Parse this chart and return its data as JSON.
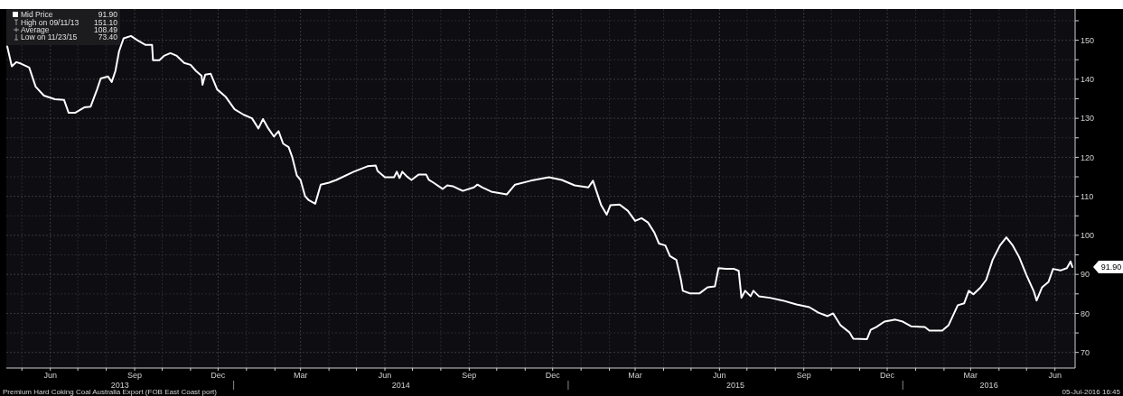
{
  "chart_data": {
    "type": "line",
    "legend": "top left",
    "grid": true,
    "line_style": "solid",
    "ylim": [
      66,
      158
    ],
    "yticks": [
      70,
      {
        "value": 75,
        "label": null
      },
      80,
      {
        "value": 85,
        "label": null
      },
      90,
      {
        "value": 95,
        "label": null
      },
      100,
      {
        "value": 105,
        "label": null
      },
      110,
      {
        "value": 115,
        "label": null
      },
      120,
      {
        "value": 125,
        "label": null
      },
      130,
      {
        "value": 135,
        "label": null
      },
      140,
      {
        "value": 145,
        "label": null
      },
      150,
      {
        "value": 155,
        "label": null
      }
    ],
    "xlim": [
      "2013-04-28",
      "2016-07-07"
    ],
    "xticks": [
      {
        "value": "2013-05-15",
        "label": null
      },
      {
        "value": "2013-06-15",
        "label": "Jun"
      },
      {
        "value": "2013-07-15",
        "label": null
      },
      {
        "value": "2013-08-15",
        "label": null
      },
      {
        "value": "2013-09-15",
        "label": "Sep"
      },
      {
        "value": "2013-10-15",
        "label": null
      },
      {
        "value": "2013-11-15",
        "label": null
      },
      {
        "value": "2013-12-15",
        "label": "Dec"
      },
      {
        "value": "2014-01-15",
        "label": null
      },
      {
        "value": "2014-02-15",
        "label": null
      },
      {
        "value": "2014-03-15",
        "label": "Mar"
      },
      {
        "value": "2014-04-15",
        "label": null
      },
      {
        "value": "2014-05-15",
        "label": null
      },
      {
        "value": "2014-06-15",
        "label": "Jun"
      },
      {
        "value": "2014-07-15",
        "label": null
      },
      {
        "value": "2014-08-15",
        "label": null
      },
      {
        "value": "2014-09-15",
        "label": "Sep"
      },
      {
        "value": "2014-10-15",
        "label": null
      },
      {
        "value": "2014-11-15",
        "label": null
      },
      {
        "value": "2014-12-15",
        "label": "Dec"
      },
      {
        "value": "2015-01-15",
        "label": null
      },
      {
        "value": "2015-02-15",
        "label": null
      },
      {
        "value": "2015-03-15",
        "label": "Mar"
      },
      {
        "value": "2015-04-15",
        "label": null
      },
      {
        "value": "2015-05-15",
        "label": null
      },
      {
        "value": "2015-06-15",
        "label": "Jun"
      },
      {
        "value": "2015-07-15",
        "label": null
      },
      {
        "value": "2015-08-15",
        "label": null
      },
      {
        "value": "2015-09-15",
        "label": "Sep"
      },
      {
        "value": "2015-10-15",
        "label": null
      },
      {
        "value": "2015-11-15",
        "label": null
      },
      {
        "value": "2015-12-15",
        "label": "Dec"
      },
      {
        "value": "2016-01-15",
        "label": null
      },
      {
        "value": "2016-02-15",
        "label": null
      },
      {
        "value": "2016-03-15",
        "label": "Mar"
      },
      {
        "value": "2016-04-15",
        "label": null
      },
      {
        "value": "2016-05-15",
        "label": null
      },
      {
        "value": "2016-06-15",
        "label": "Jun"
      }
    ],
    "annotations": [
      "91.90",
      "High on 09/11/13",
      "151.10",
      "Average",
      "108.49",
      "Low on 11/23/15",
      "73.40",
      "2013",
      "2014",
      "2015",
      "2016",
      "Premium Hard Coking Coal Australia Export (FOB East Coast port)",
      "05-Jul-2016 16:45",
      "91.90"
    ],
    "series": [
      {
        "name": "Mid Price",
        "color": "#ffffff",
        "x": [
          "2013-04-29",
          "2013-05-04",
          "2013-05-09",
          "2013-05-14",
          "2013-05-23",
          "2013-05-30",
          "2013-06-08",
          "2013-06-20",
          "2013-06-30",
          "2013-07-05",
          "2013-07-12",
          "2013-07-22",
          "2013-07-29",
          "2013-08-05",
          "2013-08-09",
          "2013-08-17",
          "2013-08-21",
          "2013-08-25",
          "2013-08-29",
          "2013-09-03",
          "2013-09-11",
          "2013-09-18",
          "2013-09-27",
          "2013-10-04",
          "2013-10-05",
          "2013-10-12",
          "2013-10-17",
          "2013-10-24",
          "2013-10-31",
          "2013-11-08",
          "2013-11-15",
          "2013-11-21",
          "2013-11-27",
          "2013-11-28",
          "2013-12-01",
          "2013-12-07",
          "2013-12-14",
          "2013-12-23",
          "2014-01-02",
          "2014-01-12",
          "2014-01-21",
          "2014-01-28",
          "2014-02-02",
          "2014-02-07",
          "2014-02-14",
          "2014-02-19",
          "2014-02-24",
          "2014-03-02",
          "2014-03-06",
          "2014-03-11",
          "2014-03-15",
          "2014-03-20",
          "2014-03-24",
          "2014-03-31",
          "2014-04-06",
          "2014-04-15",
          "2014-04-23",
          "2014-05-12",
          "2014-05-27",
          "2014-06-05",
          "2014-06-07",
          "2014-06-15",
          "2014-06-25",
          "2014-06-28",
          "2014-07-01",
          "2014-07-04",
          "2014-07-09",
          "2014-07-14",
          "2014-07-22",
          "2014-07-30",
          "2014-08-02",
          "2014-08-07",
          "2014-08-17",
          "2014-08-22",
          "2014-08-28",
          "2014-09-08",
          "2014-09-20",
          "2014-09-24",
          "2014-09-29",
          "2014-10-09",
          "2014-10-26",
          "2014-11-04",
          "2014-11-21",
          "2014-12-11",
          "2014-12-25",
          "2015-01-08",
          "2015-01-23",
          "2015-01-28",
          "2015-02-06",
          "2015-02-12",
          "2015-02-16",
          "2015-02-26",
          "2015-03-07",
          "2015-03-15",
          "2015-03-22",
          "2015-03-29",
          "2015-04-05",
          "2015-04-10",
          "2015-04-17",
          "2015-04-22",
          "2015-04-29",
          "2015-05-04",
          "2015-05-06",
          "2015-05-14",
          "2015-05-24",
          "2015-05-28",
          "2015-06-02",
          "2015-06-10",
          "2015-06-14",
          "2015-06-22",
          "2015-07-01",
          "2015-07-06",
          "2015-07-09",
          "2015-07-13",
          "2015-07-19",
          "2015-07-22",
          "2015-07-28",
          "2015-08-09",
          "2015-08-23",
          "2015-09-07",
          "2015-09-21",
          "2015-10-01",
          "2015-10-11",
          "2015-10-17",
          "2015-10-25",
          "2015-11-04",
          "2015-11-08",
          "2015-11-23",
          "2015-11-27",
          "2015-12-03",
          "2015-12-12",
          "2015-12-24",
          "2016-01-01",
          "2016-01-10",
          "2016-01-25",
          "2016-01-30",
          "2016-02-13",
          "2016-02-20",
          "2016-03-01",
          "2016-03-08",
          "2016-03-13",
          "2016-03-18",
          "2016-03-26",
          "2016-04-01",
          "2016-04-08",
          "2016-04-16",
          "2016-04-23",
          "2016-04-30",
          "2016-05-07",
          "2016-05-15",
          "2016-05-23",
          "2016-05-26",
          "2016-06-01",
          "2016-06-08",
          "2016-06-13",
          "2016-06-21",
          "2016-06-28",
          "2016-07-02",
          "2016-07-04"
        ],
        "values": [
          148.4,
          143.3,
          144.4,
          144,
          143,
          138.1,
          135.8,
          134.9,
          134.7,
          131.4,
          131.4,
          132.8,
          133,
          137.4,
          140.2,
          140.7,
          139.3,
          142.1,
          147.2,
          150.5,
          151.1,
          150,
          148.8,
          148.8,
          144.9,
          144.9,
          146,
          146.7,
          146,
          144.2,
          143.7,
          142.1,
          140.9,
          138.6,
          141.2,
          141.4,
          137.4,
          135.6,
          132.3,
          130.9,
          130,
          127.4,
          129.8,
          127.7,
          125.3,
          126.7,
          123.5,
          122.6,
          120,
          115.3,
          114.2,
          110,
          109,
          108.1,
          113,
          113.5,
          114.2,
          116.3,
          117.7,
          117.9,
          116.5,
          114.9,
          114.9,
          116.3,
          114.7,
          116.3,
          115.1,
          114.2,
          115.6,
          115.6,
          114.2,
          113.5,
          111.9,
          112.8,
          112.6,
          111.4,
          112.3,
          113,
          112.3,
          111.2,
          110.5,
          113,
          114,
          114.9,
          114.2,
          112.8,
          112.3,
          114,
          107.7,
          105.3,
          107.7,
          107.9,
          106.3,
          103.7,
          104.4,
          103.3,
          100.7,
          97.9,
          97.4,
          94.7,
          93.7,
          88.6,
          85.8,
          85.1,
          85.1,
          85.8,
          86.7,
          86.9,
          91.6,
          91.4,
          91.4,
          90.9,
          84,
          85.8,
          84.4,
          85.8,
          84.4,
          84,
          83.3,
          82.3,
          81.6,
          80.2,
          79.3,
          80,
          77,
          75.1,
          73.5,
          73.4,
          75.8,
          76.5,
          77.9,
          78.4,
          77.9,
          76.7,
          76.5,
          75.6,
          75.6,
          77,
          82.1,
          82.6,
          85.8,
          84.9,
          86.7,
          88.6,
          93.7,
          97.4,
          99.5,
          97.4,
          94.4,
          89.8,
          85.6,
          83.3,
          86.7,
          88.1,
          91.4,
          91,
          91.6,
          93.3,
          91.9
        ]
      }
    ]
  }
}
